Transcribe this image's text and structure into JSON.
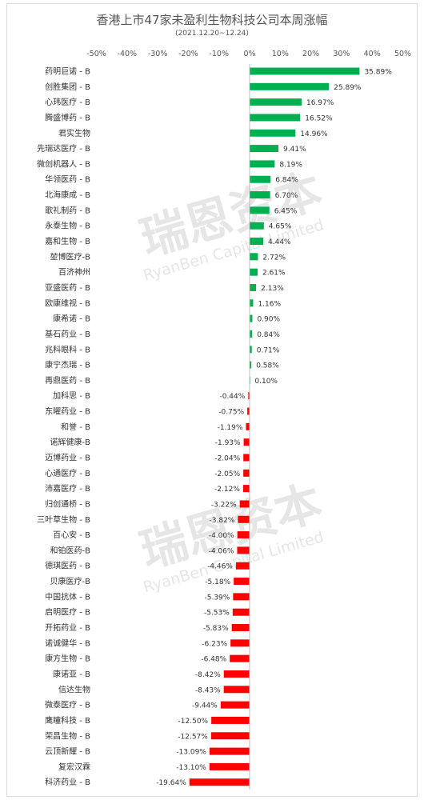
{
  "chart_data": {
    "type": "bar",
    "orientation": "horizontal",
    "title": "香港上市47家未盈利生物科技公司本周涨幅",
    "subtitle": "(2021.12.20~12.24)",
    "xlim": [
      -50,
      50
    ],
    "xticks": [
      "-50%",
      "-40%",
      "-30%",
      "-20%",
      "-10%",
      "0%",
      "10%",
      "20%",
      "30%",
      "40%",
      "50%"
    ],
    "grid": false,
    "legend": "none",
    "categories": [
      "药明巨诺 - B",
      "创胜集团 - B",
      "心玮医疗 - B",
      "腾盛博药 - B",
      "君实生物",
      "先瑞达医疗 - B",
      "微创机器人 - B",
      "华领医药 - B",
      "北海康成 - B",
      "歌礼制药 - B",
      "永泰生物 - B",
      "嘉和生物 - B",
      "堃博医疗-B",
      "百济神州",
      "亚盛医药 - B",
      "欧康维视 - B",
      "康希诺 - B",
      "基石药业 - B",
      "兆科眼科 - B",
      "康宁杰瑞 - B",
      "再鼎医药 - B",
      "加科思 - B",
      "东曜药业 - B",
      "和誉 - B",
      "诺辉健康-B",
      "迈博药业 - B",
      "心通医疗 - B",
      "沛嘉医疗 - B",
      "归创通桥 - B",
      "三叶草生物 - B",
      "百心安 - B",
      "和铂医药-B",
      "德琪医药 - B",
      "贝康医疗-B",
      "中国抗体 - B",
      "启明医疗 - B",
      "开拓药业 - B",
      "诺诚健华 - B",
      "康方生物 - B",
      "康诺亚 - B",
      "信达生物",
      "微泰医疗 - B",
      "鹰瞳科技 - B",
      "荣昌生物 - B",
      "云顶新耀 - B",
      "复宏汉霖",
      "科济药业 - B"
    ],
    "values": [
      35.89,
      25.89,
      16.97,
      16.52,
      14.96,
      9.41,
      8.19,
      6.84,
      6.7,
      6.45,
      4.65,
      4.44,
      2.72,
      2.61,
      2.13,
      1.16,
      0.9,
      0.84,
      0.71,
      0.58,
      0.1,
      -0.44,
      -0.75,
      -1.19,
      -1.93,
      -2.04,
      -2.05,
      -2.12,
      -3.22,
      -3.82,
      -4.0,
      -4.06,
      -4.46,
      -5.18,
      -5.39,
      -5.53,
      -5.83,
      -6.23,
      -6.48,
      -8.42,
      -8.43,
      -9.44,
      -12.5,
      -12.57,
      -13.09,
      -13.1,
      -19.64
    ],
    "value_suffix": "%",
    "colors": {
      "positive": "#00b050",
      "negative": "#ff0000"
    }
  },
  "watermark": {
    "text": "瑞恩资本",
    "subtext": "RyanBen Capital Limited",
    "color": "#e6e6e6"
  }
}
